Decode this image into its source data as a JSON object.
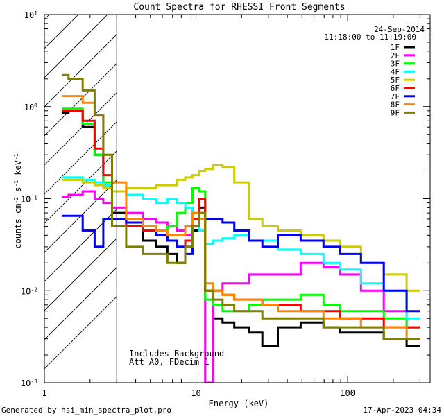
{
  "chart_data": {
    "type": "line",
    "title": "Count Spectra for RHESSI Front Segments",
    "xlabel": "Energy (keV)",
    "ylabel": "counts cm-2 s-1 keV-1",
    "xscale": "log",
    "yscale": "log",
    "xlim": [
      1,
      350
    ],
    "ylim": [
      0.001,
      10
    ],
    "xticks": [
      {
        "value": 1,
        "label": "1"
      },
      {
        "value": 10,
        "label": "10"
      },
      {
        "value": 100,
        "label": "100"
      }
    ],
    "yticks": [
      {
        "value": 0.001,
        "base": "10",
        "exp": "-3"
      },
      {
        "value": 0.01,
        "base": "10",
        "exp": "-2"
      },
      {
        "value": 0.1,
        "base": "10",
        "exp": "-1"
      },
      {
        "value": 1,
        "base": "10",
        "exp": "0"
      },
      {
        "value": 10,
        "base": "10",
        "exp": "1"
      }
    ],
    "date": "24-Sep-2014",
    "time_range": "11:18:00 to 11:19:00",
    "annotations": [
      "Includes Background",
      "Att A0, FDecim 1"
    ],
    "shaded_region_keV": [
      1,
      3
    ],
    "series": [
      {
        "name": "1F",
        "color": "#000000",
        "x": [
          1.3,
          1.6,
          2.0,
          2.3,
          2.6,
          3.0,
          4,
          5,
          6,
          7,
          8,
          9,
          10,
          11,
          12,
          14,
          16,
          20,
          25,
          30,
          40,
          60,
          80,
          100,
          150,
          200,
          300
        ],
        "y": [
          0.85,
          0.9,
          0.6,
          0.3,
          0.14,
          0.07,
          0.055,
          0.035,
          0.03,
          0.025,
          0.02,
          0.03,
          0.045,
          0.08,
          0.01,
          0.005,
          0.0045,
          0.004,
          0.0035,
          0.0025,
          0.004,
          0.0045,
          0.004,
          0.0035,
          0.0035,
          0.003,
          0.0025
        ]
      },
      {
        "name": "2F",
        "color": "#ff00ff",
        "x": [
          1.3,
          1.6,
          2.0,
          2.3,
          2.6,
          3.0,
          4,
          5,
          6,
          7,
          8,
          9,
          10,
          11,
          12,
          14,
          16,
          20,
          25,
          30,
          40,
          60,
          80,
          100,
          150,
          200,
          300
        ],
        "y": [
          0.105,
          0.11,
          0.12,
          0.1,
          0.09,
          0.08,
          0.07,
          0.06,
          0.055,
          0.05,
          0.045,
          0.04,
          0.05,
          0.06,
          0.001,
          0.01,
          0.012,
          0.012,
          0.015,
          0.015,
          0.015,
          0.02,
          0.018,
          0.015,
          0.01,
          0.006,
          0.004
        ]
      },
      {
        "name": "3F",
        "color": "#00ff00",
        "x": [
          1.3,
          1.6,
          2.0,
          2.3,
          2.6,
          3.0,
          4,
          5,
          6,
          7,
          8,
          9,
          10,
          11,
          12,
          14,
          16,
          20,
          25,
          30,
          40,
          60,
          80,
          100,
          150,
          200,
          300
        ],
        "y": [
          0.95,
          0.95,
          0.65,
          0.3,
          0.15,
          0.06,
          0.055,
          0.045,
          0.045,
          0.05,
          0.07,
          0.09,
          0.13,
          0.12,
          0.008,
          0.007,
          0.006,
          0.006,
          0.007,
          0.008,
          0.008,
          0.009,
          0.007,
          0.006,
          0.006,
          0.005,
          0.004
        ]
      },
      {
        "name": "4F",
        "color": "#00ffff",
        "x": [
          1.3,
          1.6,
          2.0,
          2.3,
          2.6,
          3.0,
          4,
          5,
          6,
          7,
          8,
          9,
          10,
          11,
          12,
          14,
          16,
          20,
          25,
          30,
          40,
          60,
          80,
          100,
          150,
          200,
          300
        ],
        "y": [
          0.17,
          0.17,
          0.16,
          0.15,
          0.14,
          0.12,
          0.11,
          0.1,
          0.09,
          0.1,
          0.09,
          0.08,
          0.06,
          0.045,
          0.032,
          0.035,
          0.037,
          0.04,
          0.035,
          0.035,
          0.028,
          0.025,
          0.02,
          0.017,
          0.012,
          0.01,
          0.005
        ]
      },
      {
        "name": "5F",
        "color": "#cccc00",
        "x": [
          1.3,
          1.6,
          2.0,
          2.3,
          2.6,
          3.0,
          4,
          5,
          6,
          7,
          8,
          9,
          10,
          11,
          12,
          14,
          16,
          20,
          25,
          30,
          40,
          60,
          80,
          100,
          150,
          200,
          300
        ],
        "y": [
          0.16,
          0.16,
          0.15,
          0.14,
          0.13,
          0.12,
          0.13,
          0.13,
          0.14,
          0.14,
          0.16,
          0.17,
          0.18,
          0.2,
          0.21,
          0.23,
          0.22,
          0.15,
          0.06,
          0.05,
          0.045,
          0.04,
          0.035,
          0.03,
          0.02,
          0.015,
          0.01
        ]
      },
      {
        "name": "6F",
        "color": "#ff0000",
        "x": [
          1.3,
          1.6,
          2.0,
          2.3,
          2.6,
          3.0,
          4,
          5,
          6,
          7,
          8,
          9,
          10,
          11,
          12,
          14,
          16,
          20,
          25,
          30,
          40,
          60,
          80,
          100,
          150,
          200,
          300
        ],
        "y": [
          0.9,
          0.9,
          0.7,
          0.35,
          0.18,
          0.06,
          0.05,
          0.045,
          0.04,
          0.035,
          0.03,
          0.035,
          0.06,
          0.1,
          0.01,
          0.01,
          0.009,
          0.008,
          0.008,
          0.007,
          0.007,
          0.006,
          0.006,
          0.005,
          0.005,
          0.004,
          0.004
        ]
      },
      {
        "name": "7F",
        "color": "#0000ff",
        "x": [
          1.3,
          1.6,
          2.0,
          2.3,
          2.6,
          3.0,
          4,
          5,
          6,
          7,
          8,
          9,
          10,
          11,
          12,
          14,
          16,
          20,
          25,
          30,
          40,
          60,
          80,
          100,
          150,
          200,
          300
        ],
        "y": [
          0.065,
          0.065,
          0.045,
          0.03,
          0.06,
          0.06,
          0.055,
          0.05,
          0.04,
          0.035,
          0.03,
          0.025,
          0.05,
          0.06,
          0.06,
          0.06,
          0.055,
          0.045,
          0.035,
          0.03,
          0.04,
          0.035,
          0.03,
          0.025,
          0.02,
          0.01,
          0.006
        ]
      },
      {
        "name": "8F",
        "color": "#ff8800",
        "x": [
          1.3,
          1.6,
          2.0,
          2.3,
          2.6,
          3.0,
          4,
          5,
          6,
          7,
          8,
          9,
          10,
          11,
          12,
          14,
          16,
          20,
          25,
          30,
          40,
          60,
          80,
          100,
          150,
          200,
          300
        ],
        "y": [
          1.3,
          1.3,
          1.1,
          0.8,
          0.3,
          0.15,
          0.06,
          0.05,
          0.045,
          0.04,
          0.04,
          0.05,
          0.07,
          0.06,
          0.012,
          0.01,
          0.009,
          0.008,
          0.008,
          0.007,
          0.006,
          0.006,
          0.005,
          0.005,
          0.004,
          0.004,
          0.003
        ]
      },
      {
        "name": "9F",
        "color": "#808000",
        "x": [
          1.3,
          1.6,
          2.0,
          2.3,
          2.6,
          3.0,
          4,
          5,
          6,
          7,
          8,
          9,
          10,
          11,
          12,
          14,
          16,
          20,
          25,
          30,
          40,
          60,
          80,
          100,
          150,
          200,
          300
        ],
        "y": [
          2.2,
          2.0,
          1.5,
          0.8,
          0.3,
          0.05,
          0.03,
          0.025,
          0.025,
          0.02,
          0.02,
          0.03,
          0.05,
          0.07,
          0.01,
          0.008,
          0.007,
          0.006,
          0.006,
          0.005,
          0.005,
          0.005,
          0.004,
          0.004,
          0.004,
          0.003,
          0.003
        ]
      }
    ]
  },
  "footer": {
    "generated_by": "Generated by hsi_min_spectra_plot.pro",
    "timestamp": "17-Apr-2023 04:34"
  }
}
